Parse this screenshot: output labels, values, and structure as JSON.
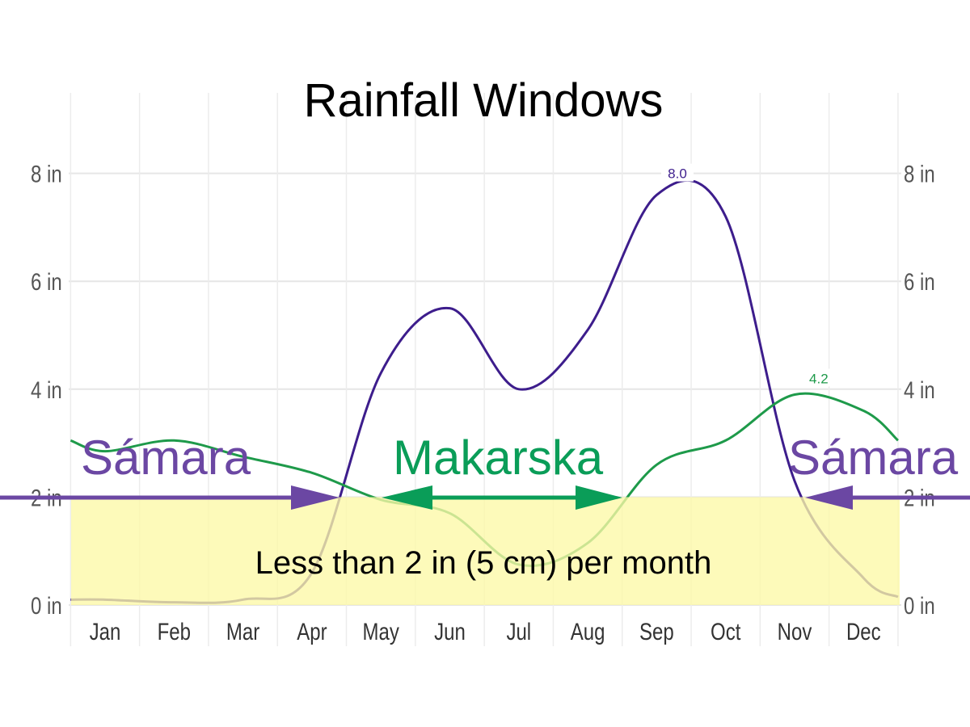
{
  "chart_data": {
    "type": "line",
    "title": "Rainfall Windows",
    "xlabel": "",
    "ylabel": "",
    "categories": [
      "Jan",
      "Feb",
      "Mar",
      "Apr",
      "May",
      "Jun",
      "Jul",
      "Aug",
      "Sep",
      "Oct",
      "Nov",
      "Dec"
    ],
    "y_ticks": [
      "0 in",
      "2 in",
      "4 in",
      "6 in",
      "8 in"
    ],
    "y_tick_values": [
      0,
      2,
      4,
      6,
      8
    ],
    "ylim": [
      0,
      8.5
    ],
    "grid": true,
    "series": [
      {
        "name": "Sámara",
        "color": "#3d1d8c",
        "values": [
          0.1,
          0.05,
          0.1,
          0.6,
          4.3,
          5.5,
          4.0,
          5.1,
          7.6,
          7.2,
          2.3,
          0.5
        ],
        "start": 0.1,
        "end": 0.15
      },
      {
        "name": "Makarska",
        "color": "#1e9a4a",
        "values": [
          2.85,
          3.05,
          2.75,
          2.45,
          1.95,
          1.7,
          0.75,
          1.15,
          2.6,
          3.05,
          3.9,
          3.6
        ],
        "start": 3.05,
        "end": 3.05
      }
    ],
    "peak_labels": [
      {
        "text": "8.0",
        "series": 0,
        "month_index": 8.3,
        "value": 8.0
      },
      {
        "text": "4.2",
        "series": 1,
        "month_index": 10.35,
        "value": 4.2
      }
    ],
    "threshold": {
      "value": 2,
      "label": "Less than 2 in (5 cm) per month",
      "color": "#fdf8a6"
    },
    "annotations": [
      {
        "text": "Sámara",
        "color": "#6b47a3"
      },
      {
        "text": "Makarska",
        "color": "#0a9d58"
      },
      {
        "text": "Sámara",
        "color": "#6b47a3"
      }
    ]
  }
}
